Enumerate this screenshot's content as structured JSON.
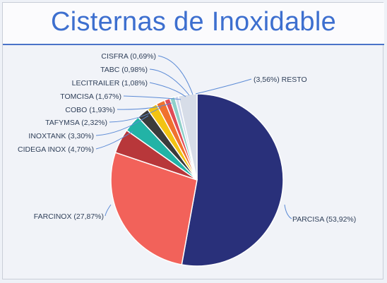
{
  "chart_data": {
    "type": "pie",
    "title": "Cisternas de Inoxidable",
    "slices": [
      {
        "name": "PARCISA",
        "value": 53.92,
        "label": "PARCISA (53,92%)",
        "color": "#29307a"
      },
      {
        "name": "FARCINOX",
        "value": 27.87,
        "label": "FARCINOX (27,87%)",
        "color": "#f2625a"
      },
      {
        "name": "CIDEGA INOX",
        "value": 4.7,
        "label": "CIDEGA INOX (4,70%)",
        "color": "#b8373a"
      },
      {
        "name": "INOXTANK",
        "value": 3.3,
        "label": "INOXTANK (3,30%)",
        "color": "#22b3a6"
      },
      {
        "name": "TAFYMSA",
        "value": 2.32,
        "label": "TAFYMSA (2,32%)",
        "color": "#3b3b3b"
      },
      {
        "name": "COBO",
        "value": 1.93,
        "label": "COBO (1,93%)",
        "color": "#f2c312"
      },
      {
        "name": "TOMCISA",
        "value": 1.67,
        "label": "TOMCISA (1,67%)",
        "color": "#f0722e"
      },
      {
        "name": "LECITRAILER",
        "value": 1.08,
        "label": "LECITRAILER (1,08%)",
        "color": "#e04b56"
      },
      {
        "name": "TABC",
        "value": 0.98,
        "label": "TABC (0,98%)",
        "color": "#8fcfc9"
      },
      {
        "name": "CISFRA",
        "value": 0.69,
        "label": "CISFRA (0,69%)",
        "color": "#cfd8ec"
      },
      {
        "name": "RESTO",
        "value": 3.56,
        "label": "(3,56%) RESTO",
        "color": "#d7dde8"
      }
    ]
  }
}
